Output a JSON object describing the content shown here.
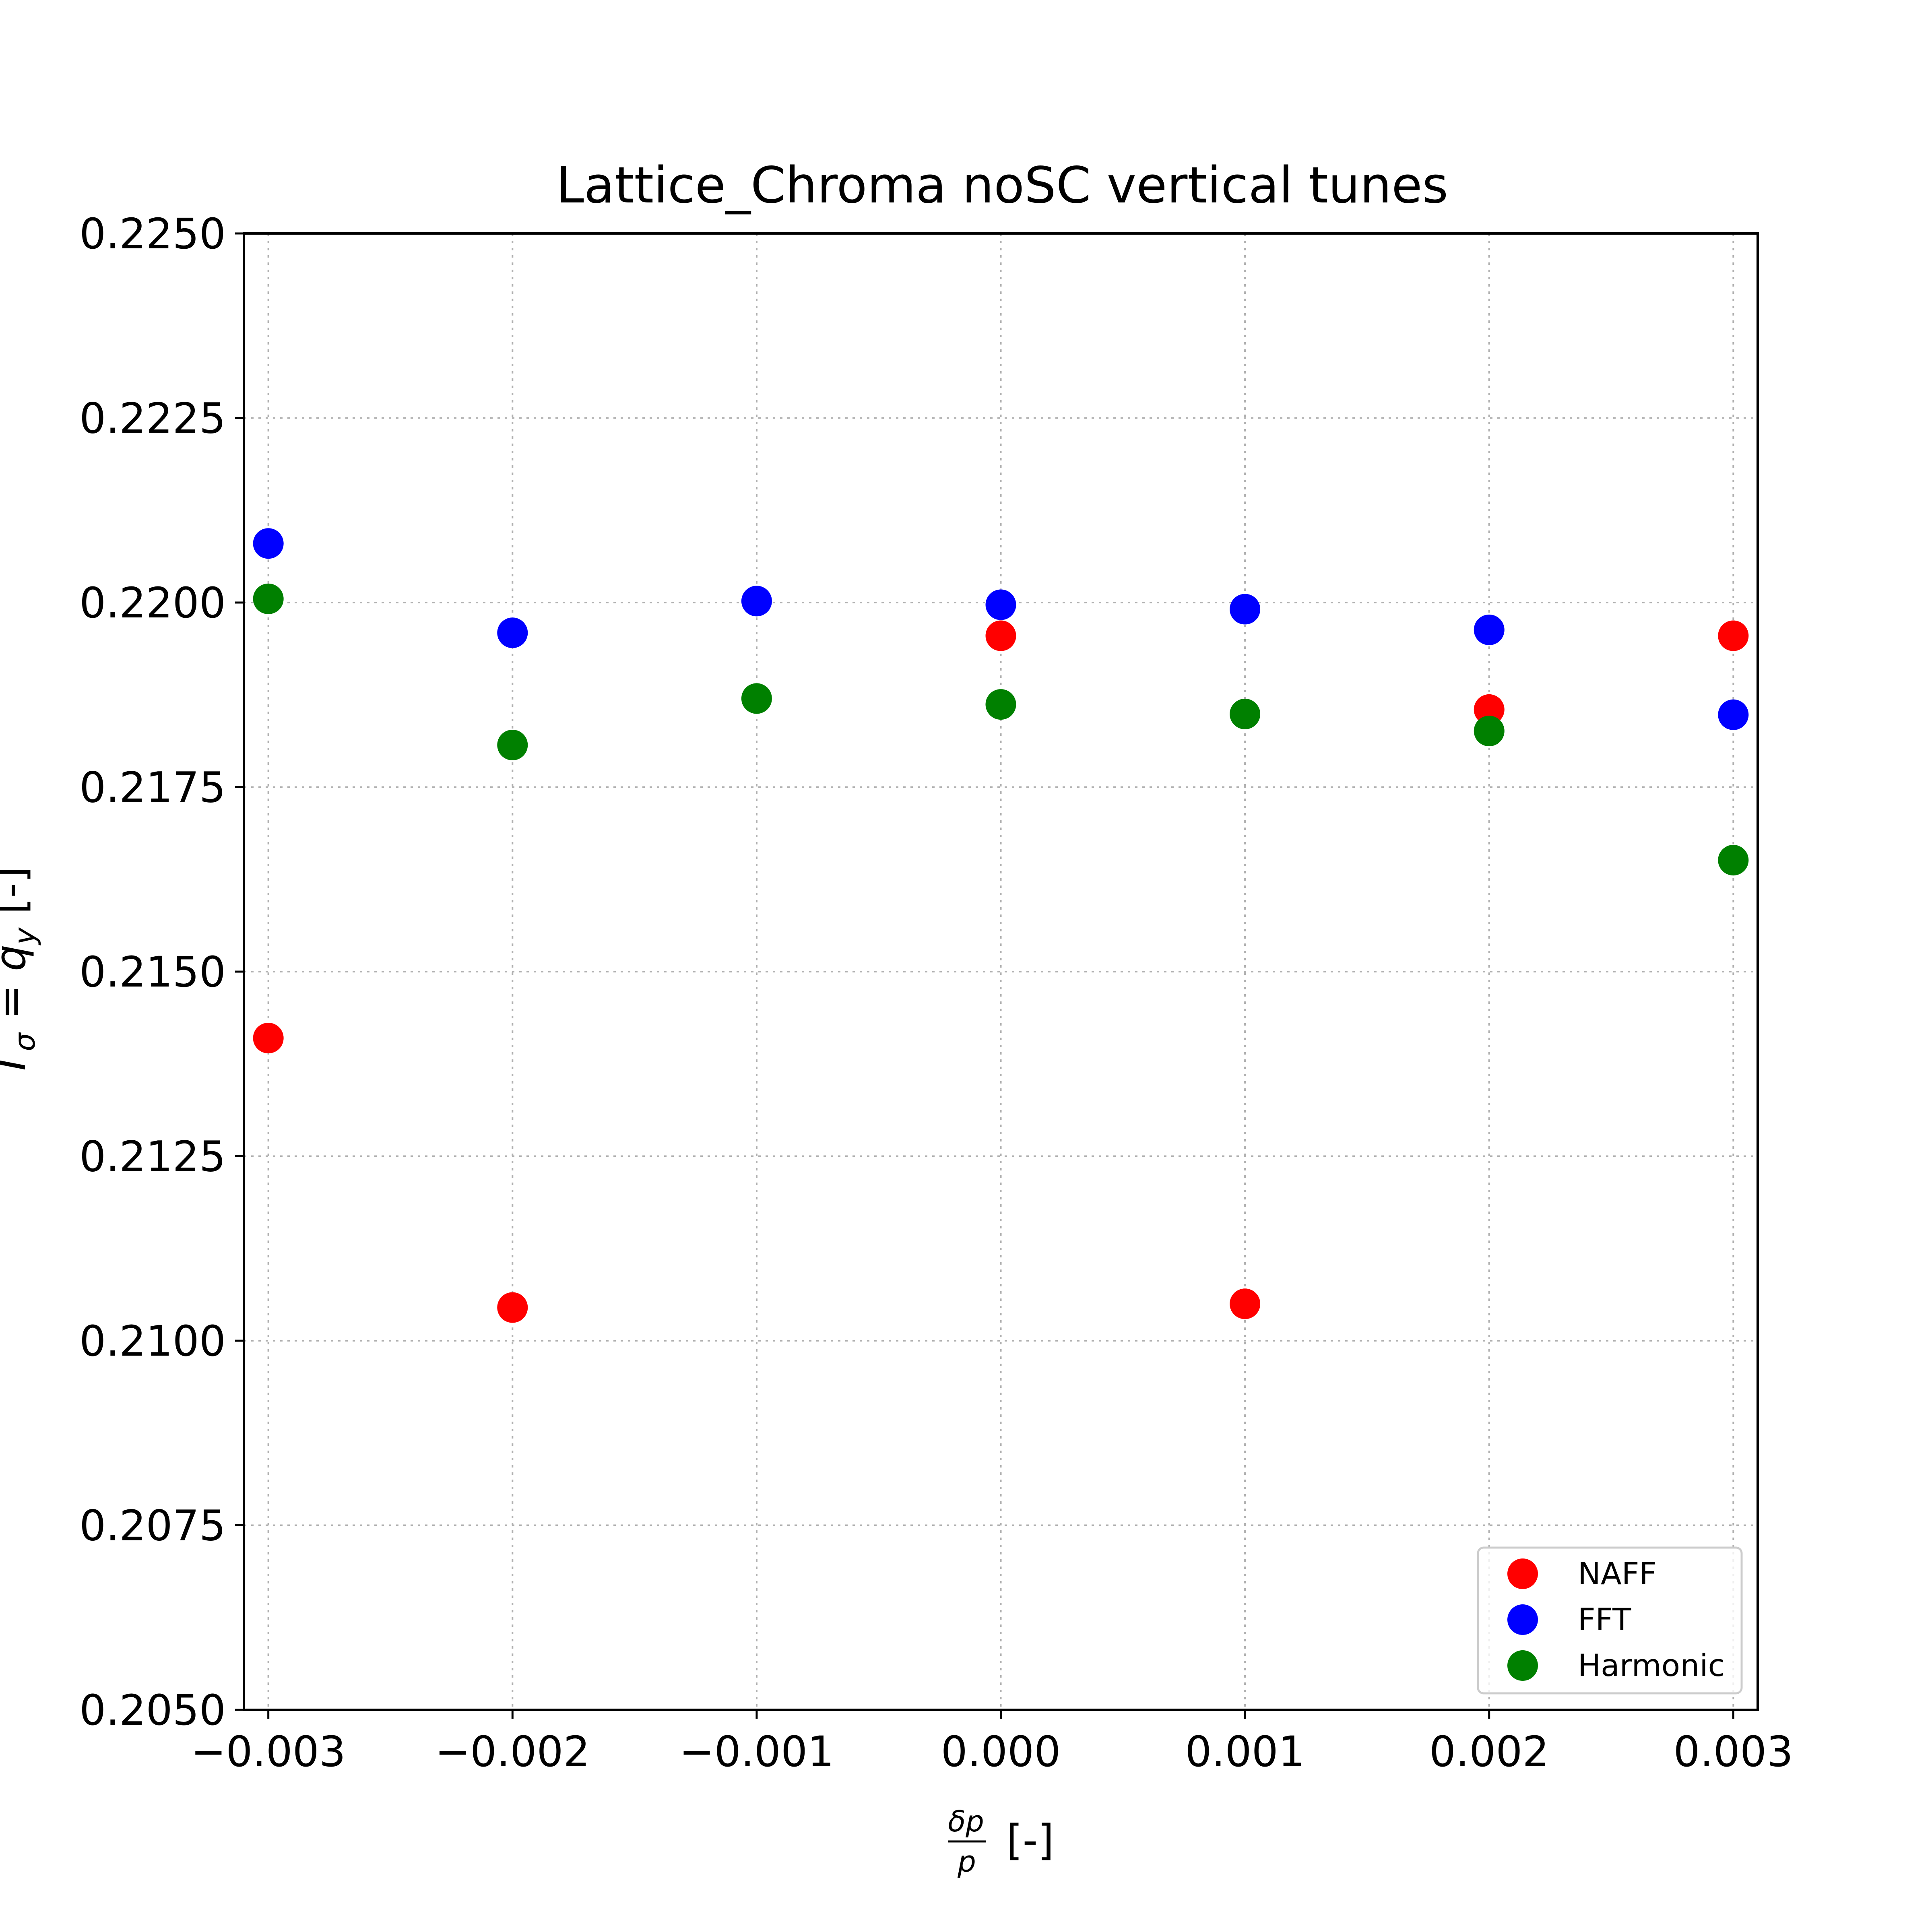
{
  "chart_data": {
    "type": "scatter",
    "title": "Lattice_Chroma noSC vertical tunes",
    "xlim": [
      -0.0031,
      0.0031
    ],
    "ylim": [
      0.205,
      0.225
    ],
    "x_ticks": [
      -0.003,
      -0.002,
      -0.001,
      0.0,
      0.001,
      0.002,
      0.003
    ],
    "x_tick_labels": [
      "−0.003",
      "−0.002",
      "−0.001",
      "0.000",
      "0.001",
      "0.002",
      "0.003"
    ],
    "y_ticks": [
      0.205,
      0.2075,
      0.21,
      0.2125,
      0.215,
      0.2175,
      0.22,
      0.2225,
      0.225
    ],
    "y_tick_labels": [
      "0.2050",
      "0.2075",
      "0.2100",
      "0.2125",
      "0.2150",
      "0.2175",
      "0.2200",
      "0.2225",
      "0.2250"
    ],
    "xlabel": {
      "numerator": "δp",
      "denominator": "p",
      "suffix": "[-]"
    },
    "ylabel": {
      "symbol": "T",
      "subscript": "σ",
      "equals": " = ",
      "q": "q",
      "q_subscript": "y",
      "suffix": " [-]"
    },
    "grid": true,
    "legend_position": "lower-right",
    "series": [
      {
        "name": "NAFF",
        "color": "#ff0000",
        "x": [
          -0.003,
          -0.002,
          0.0,
          0.001,
          0.002,
          0.003
        ],
        "y": [
          0.2141,
          0.21045,
          0.21955,
          0.2105,
          0.21855,
          0.21955
        ]
      },
      {
        "name": "FFT",
        "color": "#0000ff",
        "x": [
          -0.003,
          -0.002,
          -0.001,
          0.0,
          0.001,
          0.002,
          0.003
        ],
        "y": [
          0.2208,
          0.21959,
          0.22002,
          0.21997,
          0.21991,
          0.21963,
          0.21848
        ]
      },
      {
        "name": "Harmonic",
        "color": "#008000",
        "x": [
          -0.003,
          -0.002,
          -0.001,
          0.0,
          0.001,
          0.002,
          0.003
        ],
        "y": [
          0.22005,
          0.21807,
          0.2187,
          0.21862,
          0.21849,
          0.21826,
          0.21651
        ]
      }
    ]
  }
}
